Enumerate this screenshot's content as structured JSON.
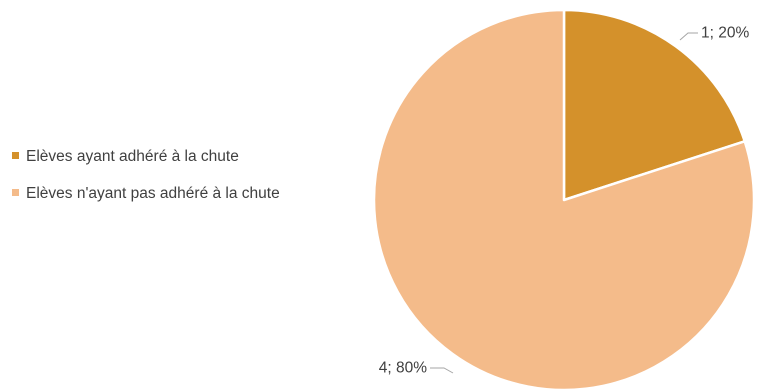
{
  "chart_data": {
    "type": "pie",
    "slices": [
      {
        "category": "Elèves ayant adhéré à la chute",
        "value": 1,
        "percent": 20,
        "data_label": "1; 20%",
        "color": "#d4912b"
      },
      {
        "category": "Elèves n'ayant pas adhéré à la chute",
        "value": 4,
        "percent": 80,
        "data_label": "4; 80%",
        "color": "#f4bb8a"
      }
    ],
    "start_angle_deg": 0,
    "direction": "clockwise",
    "legend_position": "left",
    "slice_border_color": "#ffffff"
  },
  "colors": {
    "text": "#404040",
    "leader_line": "#a6a6a6"
  }
}
